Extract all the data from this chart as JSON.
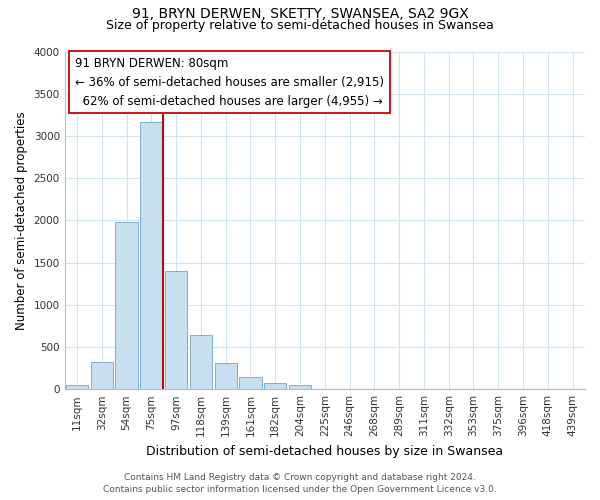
{
  "title": "91, BRYN DERWEN, SKETTY, SWANSEA, SA2 9GX",
  "subtitle": "Size of property relative to semi-detached houses in Swansea",
  "bar_labels": [
    "11sqm",
    "32sqm",
    "54sqm",
    "75sqm",
    "97sqm",
    "118sqm",
    "139sqm",
    "161sqm",
    "182sqm",
    "204sqm",
    "225sqm",
    "246sqm",
    "268sqm",
    "289sqm",
    "311sqm",
    "332sqm",
    "353sqm",
    "375sqm",
    "396sqm",
    "418sqm",
    "439sqm"
  ],
  "bar_values": [
    50,
    320,
    1980,
    3170,
    1400,
    640,
    310,
    140,
    75,
    55,
    0,
    0,
    0,
    0,
    0,
    0,
    0,
    0,
    0,
    0,
    0
  ],
  "bar_color": "#c8dff0",
  "bar_edge_color": "#7ab0d4",
  "property_sqm": 80,
  "property_label": "91 BRYN DERWEN: 80sqm",
  "pct_smaller": 36,
  "n_smaller": 2915,
  "pct_larger": 62,
  "n_larger": 4955,
  "ylabel": "Number of semi-detached properties",
  "xlabel": "Distribution of semi-detached houses by size in Swansea",
  "ylim": [
    0,
    4000
  ],
  "footer1": "Contains HM Land Registry data © Crown copyright and database right 2024.",
  "footer2": "Contains public sector information licensed under the Open Government Licence v3.0.",
  "vline_color": "#cc0000",
  "box_facecolor": "#ffffff",
  "box_edgecolor": "#cc0000",
  "grid_color": "#d0e4f0",
  "title_fontsize": 10,
  "subtitle_fontsize": 9,
  "tick_fontsize": 7.5,
  "ylabel_fontsize": 8.5,
  "xlabel_fontsize": 9,
  "annotation_fontsize": 8.5,
  "footer_fontsize": 6.5
}
